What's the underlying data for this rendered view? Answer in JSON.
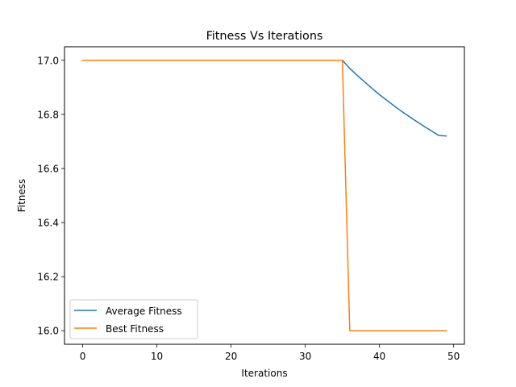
{
  "chart_data": {
    "type": "line",
    "title": "Fitness Vs Iterations",
    "xlabel": "Iterations",
    "ylabel": "Fitness",
    "xlim": [
      -2.45,
      51.45
    ],
    "ylim": [
      15.95,
      17.05
    ],
    "xticks": [
      0,
      10,
      20,
      30,
      40,
      50
    ],
    "xtick_labels": [
      "0",
      "10",
      "20",
      "30",
      "40",
      "50"
    ],
    "yticks": [
      16.0,
      16.2,
      16.4,
      16.6,
      16.8,
      17.0
    ],
    "ytick_labels": [
      "16.0",
      "16.2",
      "16.4",
      "16.6",
      "16.8",
      "17.0"
    ],
    "grid": false,
    "legend_position": "lower-left",
    "series": [
      {
        "name": "Average Fitness",
        "color": "#1f77b4",
        "x": [
          0,
          1,
          2,
          3,
          4,
          5,
          6,
          7,
          8,
          9,
          10,
          11,
          12,
          13,
          14,
          15,
          16,
          17,
          18,
          19,
          20,
          21,
          22,
          23,
          24,
          25,
          26,
          27,
          28,
          29,
          30,
          31,
          32,
          33,
          34,
          35,
          36,
          37,
          38,
          39,
          40,
          41,
          42,
          43,
          44,
          45,
          46,
          47,
          48,
          49
        ],
        "y": [
          17.0,
          17.0,
          17.0,
          17.0,
          17.0,
          17.0,
          17.0,
          17.0,
          17.0,
          17.0,
          17.0,
          17.0,
          17.0,
          17.0,
          17.0,
          17.0,
          17.0,
          17.0,
          17.0,
          17.0,
          17.0,
          17.0,
          17.0,
          17.0,
          17.0,
          17.0,
          17.0,
          17.0,
          17.0,
          17.0,
          17.0,
          17.0,
          17.0,
          17.0,
          17.0,
          17.0,
          16.97,
          16.944,
          16.92,
          16.896,
          16.873,
          16.852,
          16.831,
          16.811,
          16.792,
          16.774,
          16.756,
          16.739,
          16.722,
          16.72
        ]
      },
      {
        "name": "Best Fitness",
        "color": "#ff7f0e",
        "x": [
          0,
          1,
          2,
          3,
          4,
          5,
          6,
          7,
          8,
          9,
          10,
          11,
          12,
          13,
          14,
          15,
          16,
          17,
          18,
          19,
          20,
          21,
          22,
          23,
          24,
          25,
          26,
          27,
          28,
          29,
          30,
          31,
          32,
          33,
          34,
          35,
          36,
          37,
          38,
          39,
          40,
          41,
          42,
          43,
          44,
          45,
          46,
          47,
          48,
          49
        ],
        "y": [
          17.0,
          17.0,
          17.0,
          17.0,
          17.0,
          17.0,
          17.0,
          17.0,
          17.0,
          17.0,
          17.0,
          17.0,
          17.0,
          17.0,
          17.0,
          17.0,
          17.0,
          17.0,
          17.0,
          17.0,
          17.0,
          17.0,
          17.0,
          17.0,
          17.0,
          17.0,
          17.0,
          17.0,
          17.0,
          17.0,
          17.0,
          17.0,
          17.0,
          17.0,
          17.0,
          17.0,
          16.0,
          16.0,
          16.0,
          16.0,
          16.0,
          16.0,
          16.0,
          16.0,
          16.0,
          16.0,
          16.0,
          16.0,
          16.0,
          16.0
        ]
      }
    ]
  }
}
